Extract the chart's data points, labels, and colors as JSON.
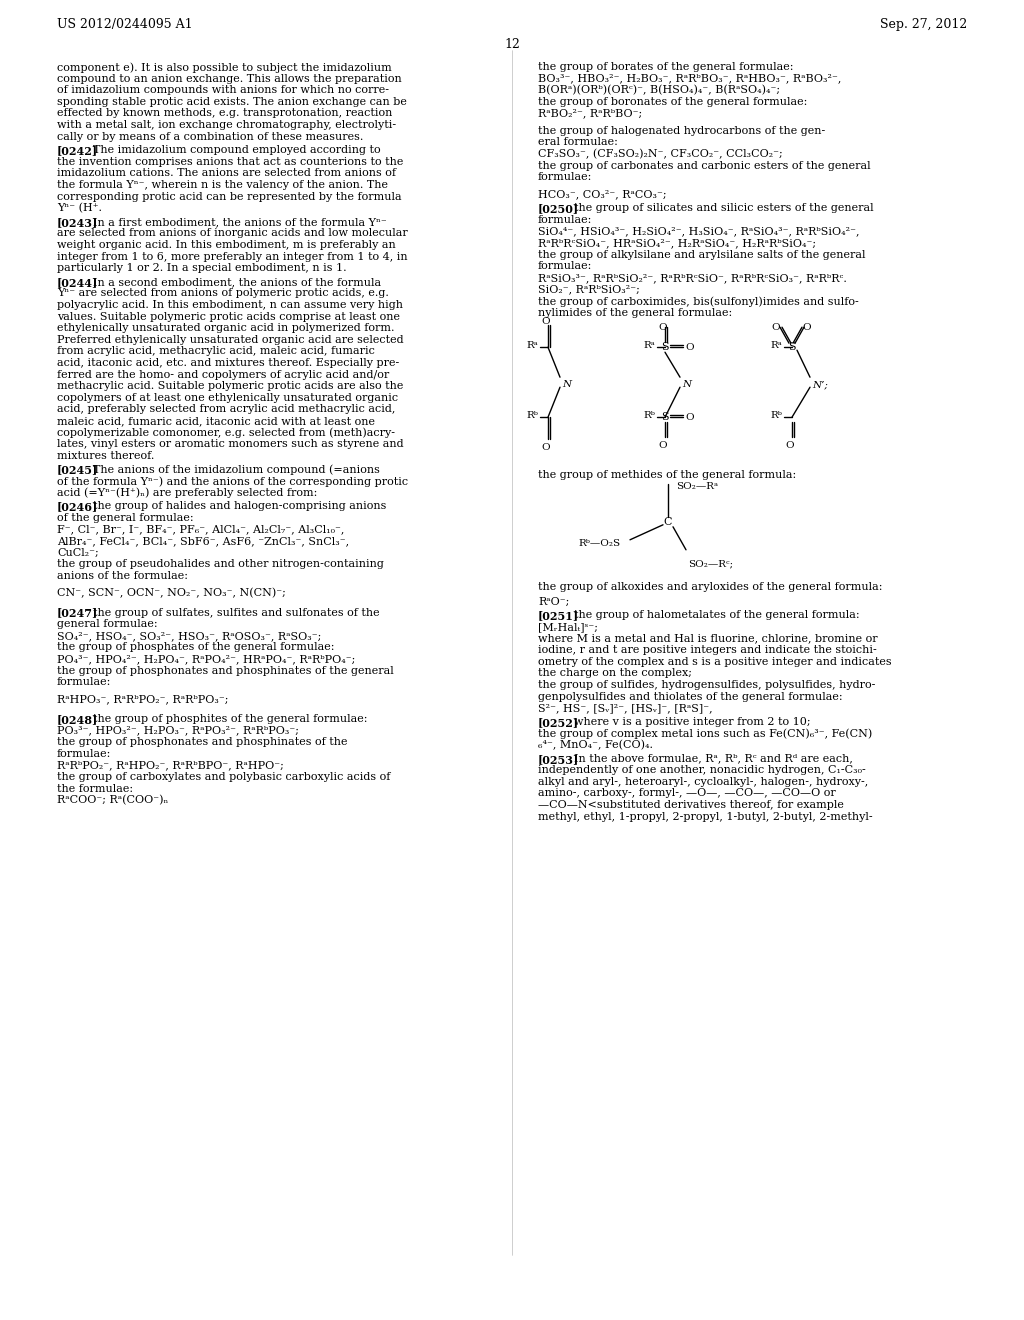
{
  "background_color": "#ffffff",
  "header_left": "US 2012/0244095 A1",
  "header_right": "Sep. 27, 2012",
  "page_number": "12"
}
